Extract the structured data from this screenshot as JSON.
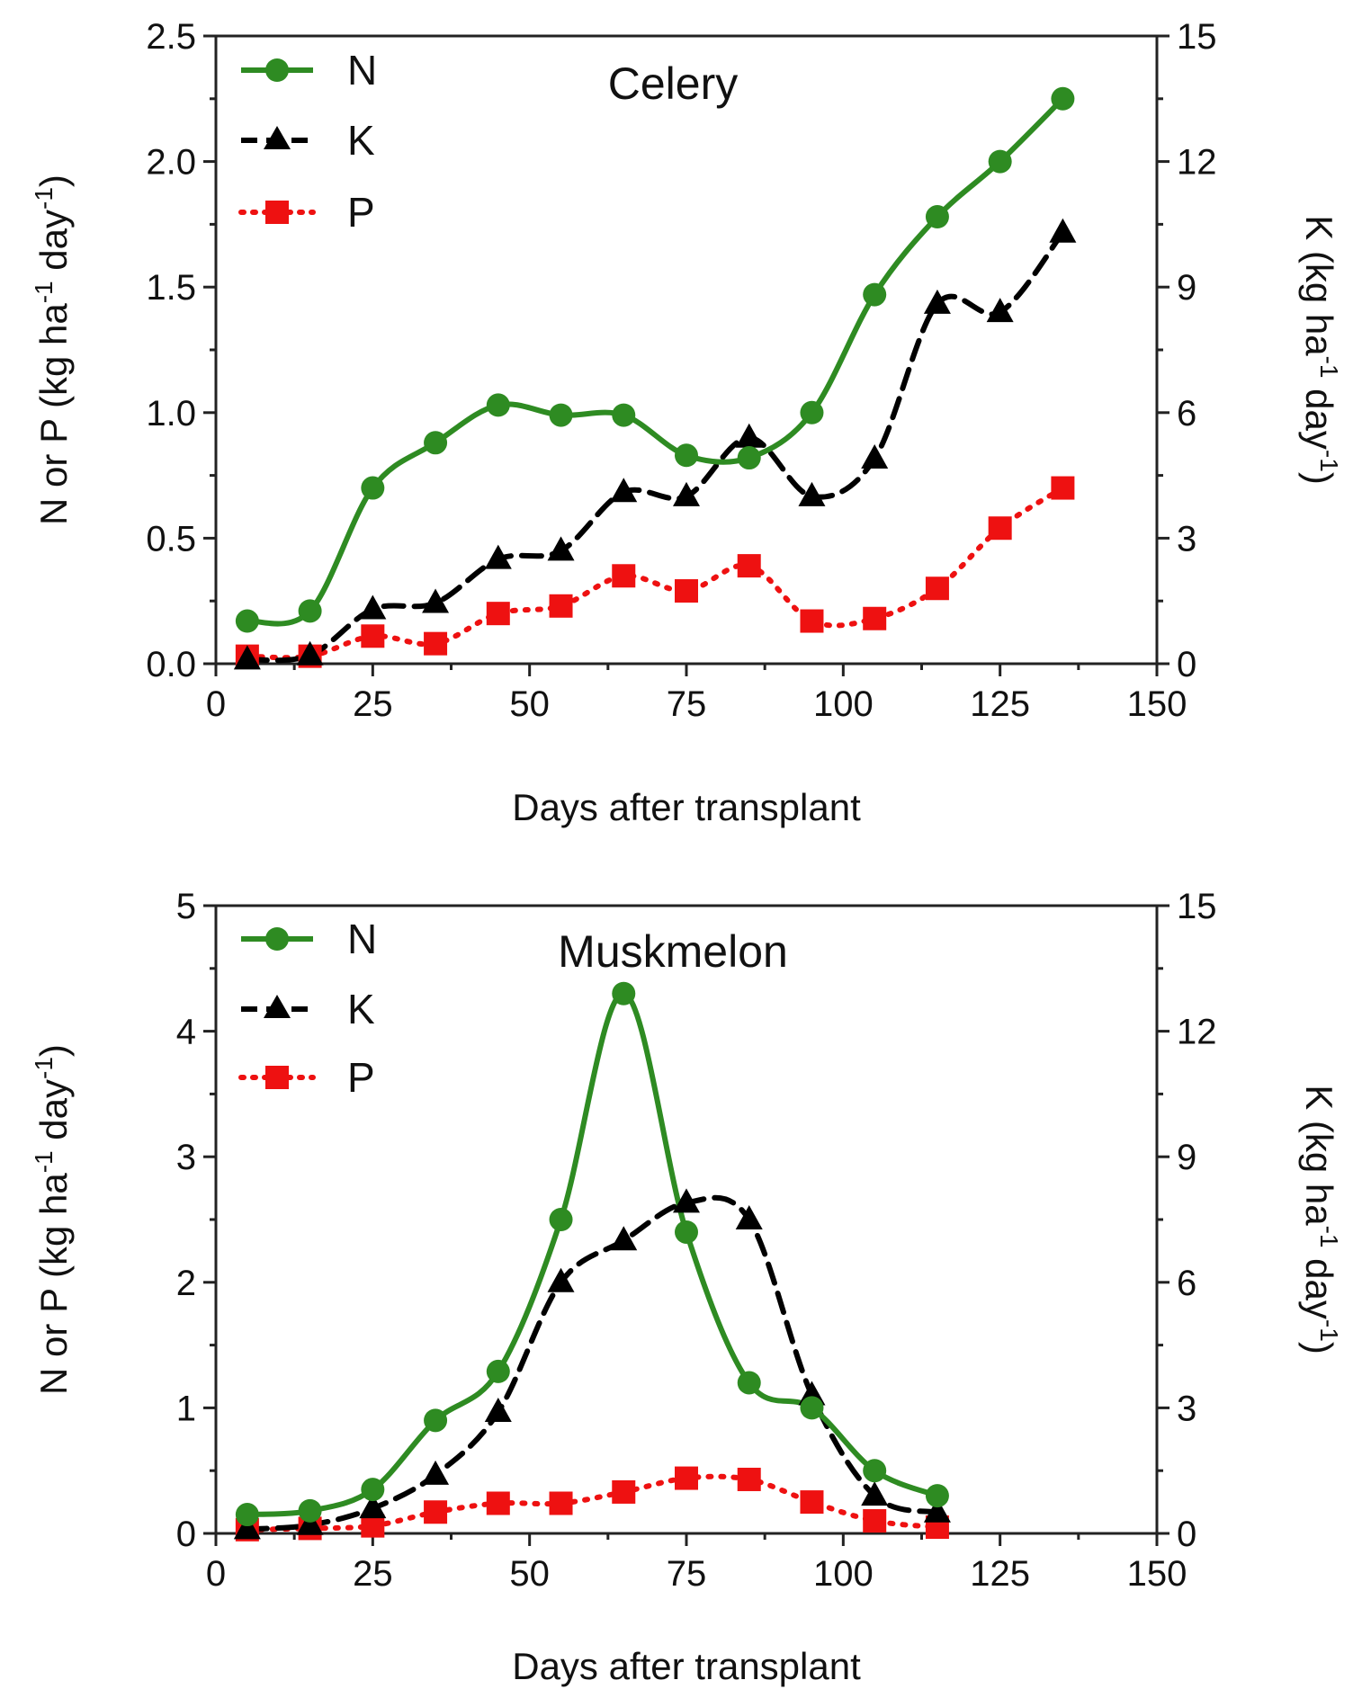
{
  "chart_data": [
    {
      "type": "line",
      "title": "Celery",
      "xlabel": "Days after transplant",
      "ylabel": {
        "main": "N or P (kg ha",
        "sup1": "-1",
        "mid": " day",
        "sup2": "-1",
        "end": ")"
      },
      "y2label": {
        "main": "K (kg ha",
        "sup1": "-1",
        "mid": " day",
        "sup2": "-1",
        "end": ")"
      },
      "xlim": [
        0,
        150
      ],
      "ylim": [
        0,
        2.5
      ],
      "y2lim": [
        0,
        15
      ],
      "x_ticks": [
        0,
        25,
        50,
        75,
        100,
        125,
        150
      ],
      "y_ticks": [
        0,
        0.5,
        1,
        1.5,
        2,
        2.5
      ],
      "y_tick_labels": [
        "0.0",
        "0.5",
        "1.0",
        "1.5",
        "2.0",
        "2.5"
      ],
      "y2_ticks": [
        0,
        3,
        6,
        9,
        12,
        15
      ],
      "y2_tick_labels": [
        "0",
        "3",
        "6",
        "9",
        "12",
        "15"
      ],
      "grid": false,
      "legend_position": "top-left",
      "series": [
        {
          "name": "N",
          "axis": "left",
          "color": "#2e8b22",
          "marker": "circle",
          "dash": "solid",
          "x": [
            5,
            15,
            25,
            35,
            45,
            55,
            65,
            75,
            85,
            95,
            105,
            115,
            125,
            135
          ],
          "y": [
            0.17,
            0.21,
            0.7,
            0.88,
            1.03,
            0.99,
            0.99,
            0.83,
            0.82,
            1.0,
            1.47,
            1.78,
            2.0,
            2.25
          ]
        },
        {
          "name": "K",
          "axis": "right",
          "color": "#000000",
          "marker": "triangle",
          "dash": "dashed",
          "x": [
            5,
            15,
            25,
            35,
            45,
            55,
            65,
            75,
            85,
            95,
            105,
            115,
            125,
            135
          ],
          "y": [
            0.1,
            0.2,
            1.3,
            1.45,
            2.5,
            2.7,
            4.1,
            4.0,
            5.4,
            4.0,
            4.9,
            8.6,
            8.4,
            10.3
          ]
        },
        {
          "name": "P",
          "axis": "left",
          "color": "#ee1111",
          "marker": "square",
          "dash": "dotted",
          "x": [
            5,
            15,
            25,
            35,
            45,
            55,
            65,
            75,
            85,
            95,
            105,
            115,
            125,
            135
          ],
          "y": [
            0.03,
            0.03,
            0.11,
            0.08,
            0.2,
            0.23,
            0.35,
            0.29,
            0.39,
            0.17,
            0.18,
            0.3,
            0.54,
            0.7
          ]
        }
      ]
    },
    {
      "type": "line",
      "title": "Muskmelon",
      "xlabel": "Days after transplant",
      "ylabel": {
        "main": "N or P (kg ha",
        "sup1": "-1",
        "mid": " day",
        "sup2": "-1",
        "end": ")"
      },
      "y2label": {
        "main": "K (kg ha",
        "sup1": "-1",
        "mid": " day",
        "sup2": "-1",
        "end": ")"
      },
      "xlim": [
        0,
        150
      ],
      "ylim": [
        0,
        5
      ],
      "y2lim": [
        0,
        15
      ],
      "x_ticks": [
        0,
        25,
        50,
        75,
        100,
        125,
        150
      ],
      "y_ticks": [
        0,
        1,
        2,
        3,
        4,
        5
      ],
      "y_tick_labels": [
        "0",
        "1",
        "2",
        "3",
        "4",
        "5"
      ],
      "y2_ticks": [
        0,
        3,
        6,
        9,
        12,
        15
      ],
      "y2_tick_labels": [
        "0",
        "3",
        "6",
        "9",
        "12",
        "15"
      ],
      "grid": false,
      "legend_position": "top-left",
      "series": [
        {
          "name": "N",
          "axis": "left",
          "color": "#2e8b22",
          "marker": "circle",
          "dash": "solid",
          "x": [
            5,
            15,
            25,
            35,
            45,
            55,
            65,
            75,
            85,
            95,
            105,
            115
          ],
          "y": [
            0.15,
            0.18,
            0.35,
            0.9,
            1.29,
            2.5,
            4.3,
            2.4,
            1.2,
            1.0,
            0.5,
            0.3
          ]
        },
        {
          "name": "K",
          "axis": "right",
          "color": "#000000",
          "marker": "triangle",
          "dash": "dashed",
          "x": [
            5,
            15,
            25,
            35,
            45,
            55,
            65,
            75,
            85,
            95,
            105,
            115
          ],
          "y": [
            0.1,
            0.2,
            0.6,
            1.4,
            2.9,
            6.0,
            7.0,
            7.9,
            7.5,
            3.3,
            0.9,
            0.5
          ]
        },
        {
          "name": "P",
          "axis": "left",
          "color": "#ee1111",
          "marker": "square",
          "dash": "dotted",
          "x": [
            5,
            15,
            25,
            35,
            45,
            55,
            65,
            75,
            85,
            95,
            105,
            115
          ],
          "y": [
            0.03,
            0.04,
            0.06,
            0.17,
            0.24,
            0.24,
            0.33,
            0.44,
            0.43,
            0.25,
            0.1,
            0.05
          ]
        }
      ]
    }
  ]
}
